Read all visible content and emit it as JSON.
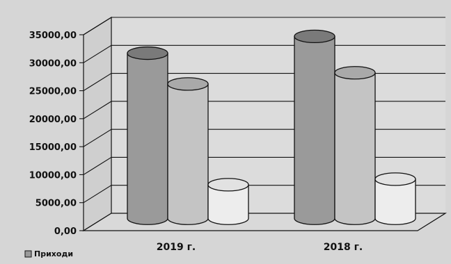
{
  "chart_data": {
    "type": "bar",
    "style": "3d-cylinder",
    "categories": [
      "2019 г.",
      "2018 г."
    ],
    "series": [
      {
        "name": "Приходи",
        "values": [
          29500,
          32500
        ]
      },
      {
        "values": [
          24000,
          26000
        ]
      },
      {
        "values": [
          6000,
          7000
        ]
      }
    ],
    "ylim": [
      0,
      35000
    ],
    "yticks": [
      "0,00",
      "5000,00",
      "10000,00",
      "15000,00",
      "20000,00",
      "25000,00",
      "30000,00",
      "35000,00"
    ],
    "grid": true,
    "legend": "bottom-left",
    "colors": {
      "series": [
        "#9a9a9a",
        "#c4c4c4",
        "#ededed"
      ],
      "background": "#d6d6d6"
    }
  }
}
